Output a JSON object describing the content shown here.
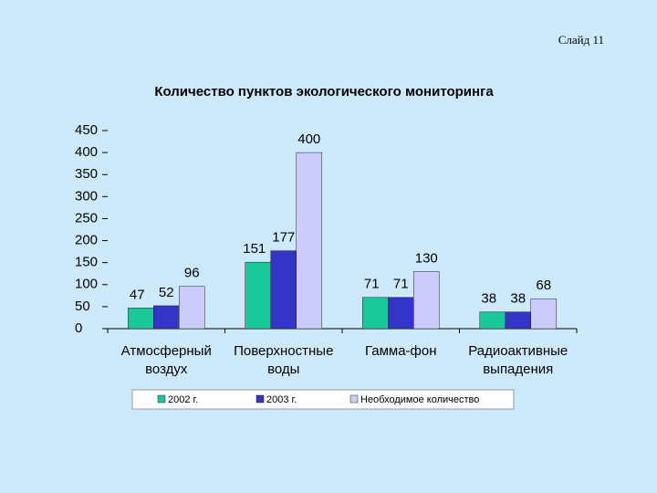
{
  "slide_label": "Слайд 11",
  "chart_data": {
    "type": "bar",
    "title": "Количество пунктов экологического мониторинга",
    "categories": [
      "Атмосферный воздух",
      "Поверхностные воды",
      "Гамма-фон",
      "Радиоактивные выпадения"
    ],
    "series": [
      {
        "name": "2002 г.",
        "color": "#19c99a",
        "values": [
          47,
          151,
          71,
          38
        ]
      },
      {
        "name": "2003 г.",
        "color": "#3434c8",
        "values": [
          52,
          177,
          71,
          38
        ]
      },
      {
        "name": "Необходимое количество",
        "color": "#ccccfa",
        "values": [
          96,
          400,
          130,
          68
        ]
      }
    ],
    "ylim": [
      0,
      450
    ],
    "yticks": [
      0,
      50,
      100,
      150,
      200,
      250,
      300,
      350,
      400,
      450
    ],
    "legend": "bottom"
  }
}
